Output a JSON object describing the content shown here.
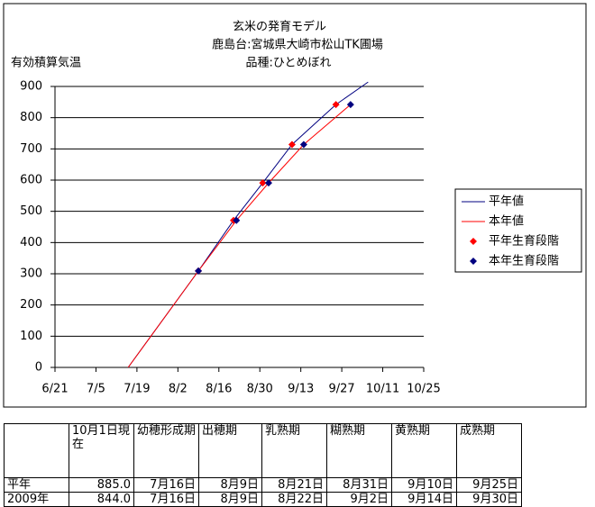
{
  "chart_data": {
    "type": "line",
    "title": [
      "玄米の発育モデル",
      "鹿島台:宮城県大崎市松山TK圃場",
      "品種:ひとめぼれ"
    ],
    "y_label": "有効積算気温",
    "xlim": [
      "6/21",
      "10/25"
    ],
    "xticks": [
      "6/21",
      "7/5",
      "7/19",
      "8/2",
      "8/16",
      "8/30",
      "9/13",
      "9/27",
      "10/11",
      "10/25"
    ],
    "ylim": [
      0,
      900
    ],
    "yticks": [
      0,
      100,
      200,
      300,
      400,
      500,
      600,
      700,
      800,
      900
    ],
    "grid": true,
    "legend": "right",
    "series": [
      {
        "name": "平年値",
        "type": "line",
        "color": "#000080",
        "x": [
          "7/16",
          "8/9",
          "8/21",
          "8/31",
          "9/10",
          "9/25",
          "10/6"
        ],
        "values": [
          0,
          309,
          471,
          591,
          714,
          842,
          914
        ]
      },
      {
        "name": "本年値",
        "type": "line",
        "color": "#ff0000",
        "x": [
          "7/16",
          "8/9",
          "8/22",
          "9/2",
          "9/14",
          "9/30"
        ],
        "values": [
          0,
          309,
          471,
          591,
          714,
          842
        ]
      },
      {
        "name": "平年生育段階",
        "type": "scatter",
        "color": "#ff0000",
        "x": [
          "8/9",
          "8/21",
          "8/31",
          "9/10",
          "9/25"
        ],
        "values": [
          309,
          471,
          591,
          714,
          842
        ]
      },
      {
        "name": "本年生育段階",
        "type": "scatter",
        "color": "#000080",
        "x": [
          "8/9",
          "8/22",
          "9/2",
          "9/14",
          "9/30"
        ],
        "values": [
          309,
          471,
          591,
          714,
          842
        ]
      }
    ]
  },
  "table": {
    "header": [
      "10月1日現在",
      "幼穂形成期",
      "出穂期",
      "乳熟期",
      "糊熟期",
      "黄熟期",
      "成熟期"
    ],
    "rows": [
      [
        "平年",
        "885.0",
        "7月16日",
        "8月9日",
        "8月21日",
        "8月31日",
        "9月10日",
        "9月25日"
      ],
      [
        "2009年",
        "844.0",
        "7月16日",
        "8月9日",
        "8月22日",
        "9月2日",
        "9月14日",
        "9月30日"
      ]
    ]
  }
}
